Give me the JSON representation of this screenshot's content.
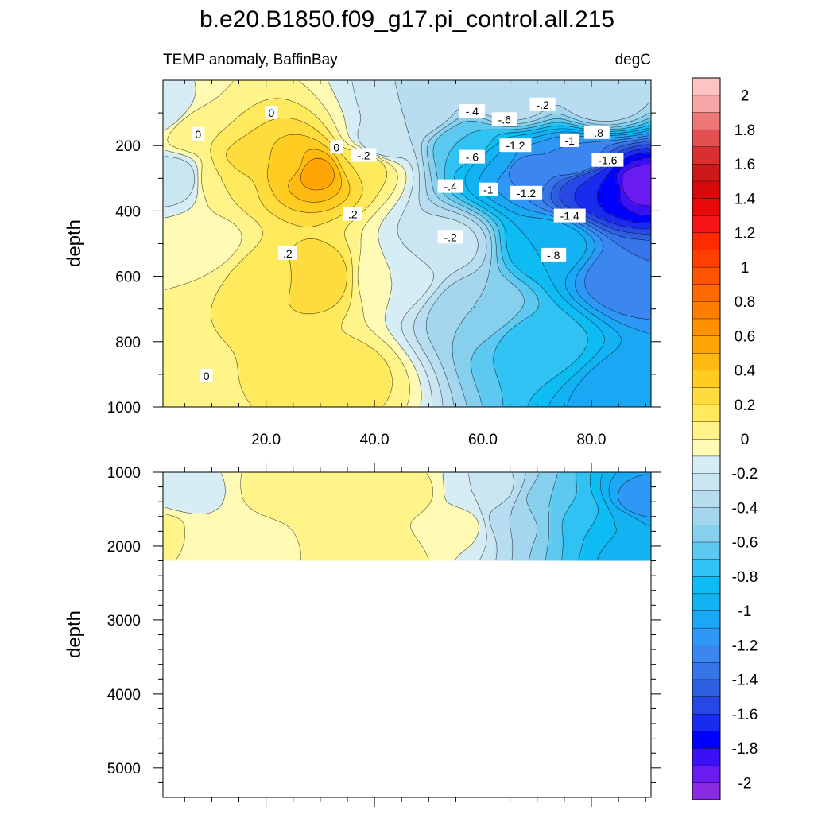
{
  "title": "b.e20.B1850.f09_g17.pi_control.all.215",
  "left_string": "TEMP anomaly, BaffinBay",
  "right_string": "degC",
  "chart_data": [
    {
      "type": "heatmap",
      "panel": "upper",
      "xlabel": "",
      "ylabel": "depth",
      "xlim": [
        1,
        91
      ],
      "ylim": [
        1000,
        0
      ],
      "x_ticks": [
        20,
        40,
        60,
        80
      ],
      "x_tick_labels": [
        "20.0",
        "40.0",
        "60.0",
        "80.0"
      ],
      "y_ticks": [
        200,
        400,
        600,
        800,
        1000
      ],
      "y_tick_labels": [
        "200",
        "400",
        "600",
        "800",
        "1000"
      ],
      "contour_labels": [
        {
          "text": "0",
          "x": 7.5,
          "y": 165
        },
        {
          "text": "0",
          "x": 21,
          "y": 100
        },
        {
          "text": "0",
          "x": 33,
          "y": 205
        },
        {
          "text": "-.2",
          "x": 38,
          "y": 230
        },
        {
          "text": ".2",
          "x": 36,
          "y": 410
        },
        {
          "text": ".2",
          "x": 24,
          "y": 530
        },
        {
          "text": "0",
          "x": 9,
          "y": 905
        },
        {
          "text": "-.4",
          "x": 58,
          "y": 95
        },
        {
          "text": "-.6",
          "x": 64,
          "y": 120
        },
        {
          "text": "-.2",
          "x": 71,
          "y": 75
        },
        {
          "text": "-1.2",
          "x": 66,
          "y": 200
        },
        {
          "text": "-1",
          "x": 76,
          "y": 185
        },
        {
          "text": "-.8",
          "x": 81,
          "y": 160
        },
        {
          "text": "-.6",
          "x": 58,
          "y": 235
        },
        {
          "text": "-1.6",
          "x": 83,
          "y": 245
        },
        {
          "text": "-.4",
          "x": 54,
          "y": 325
        },
        {
          "text": "-1",
          "x": 61,
          "y": 335
        },
        {
          "text": "-1.2",
          "x": 68,
          "y": 345
        },
        {
          "text": "-1.4",
          "x": 76,
          "y": 415
        },
        {
          "text": "-.2",
          "x": 54,
          "y": 480
        },
        {
          "text": "-.8",
          "x": 73,
          "y": 535
        }
      ],
      "fields": [
        {
          "x": 1,
          "y": 100,
          "value": -0.2
        },
        {
          "x": 3,
          "y": 300,
          "value": -0.3
        },
        {
          "x": 7,
          "y": 150,
          "value": 0.1
        },
        {
          "x": 8,
          "y": 500,
          "value": -0.05
        },
        {
          "x": 12,
          "y": 300,
          "value": 0.1
        },
        {
          "x": 17,
          "y": 250,
          "value": 0.25
        },
        {
          "x": 21,
          "y": 600,
          "value": 0.15
        },
        {
          "x": 24,
          "y": 260,
          "value": 0.35
        },
        {
          "x": 29,
          "y": 280,
          "value": 0.55
        },
        {
          "x": 29,
          "y": 600,
          "value": 0.3
        },
        {
          "x": 33,
          "y": 900,
          "value": 0.15
        },
        {
          "x": 38,
          "y": 250,
          "value": 0.2
        },
        {
          "x": 41,
          "y": 200,
          "value": -0.3
        },
        {
          "x": 43,
          "y": 600,
          "value": -0.1
        },
        {
          "x": 48,
          "y": 100,
          "value": -0.3
        },
        {
          "x": 53,
          "y": 500,
          "value": -0.25
        },
        {
          "x": 57,
          "y": 200,
          "value": -0.7
        },
        {
          "x": 59,
          "y": 700,
          "value": -0.5
        },
        {
          "x": 63,
          "y": 250,
          "value": -1.0
        },
        {
          "x": 67,
          "y": 270,
          "value": -1.25
        },
        {
          "x": 70,
          "y": 800,
          "value": -0.75
        },
        {
          "x": 72,
          "y": 500,
          "value": -0.9
        },
        {
          "x": 77,
          "y": 250,
          "value": -1.2
        },
        {
          "x": 80,
          "y": 320,
          "value": -1.6
        },
        {
          "x": 83,
          "y": 330,
          "value": -1.75
        },
        {
          "x": 88,
          "y": 320,
          "value": -2.0
        },
        {
          "x": 87,
          "y": 600,
          "value": -1.3
        },
        {
          "x": 88,
          "y": 950,
          "value": -1.1
        },
        {
          "x": 65,
          "y": 60,
          "value": -0.3
        },
        {
          "x": 82,
          "y": 60,
          "value": -0.3
        }
      ]
    },
    {
      "type": "heatmap",
      "panel": "lower",
      "xlabel": "",
      "ylabel": "depth",
      "xlim": [
        1,
        91
      ],
      "ylim": [
        5400,
        1000
      ],
      "data_depth_max": 2200,
      "y_ticks": [
        1000,
        2000,
        3000,
        4000,
        5000
      ],
      "y_tick_labels": [
        "1000",
        "2000",
        "3000",
        "4000",
        "5000"
      ],
      "fields": [
        {
          "x": 1,
          "y": 1800,
          "value": 0.05
        },
        {
          "x": 5,
          "y": 1300,
          "value": -0.15
        },
        {
          "x": 10,
          "y": 1800,
          "value": -0.1
        },
        {
          "x": 18,
          "y": 1900,
          "value": -0.05
        },
        {
          "x": 24,
          "y": 1300,
          "value": 0.1
        },
        {
          "x": 33,
          "y": 1700,
          "value": 0.05
        },
        {
          "x": 40,
          "y": 2100,
          "value": 0.1
        },
        {
          "x": 45,
          "y": 1300,
          "value": 0.05
        },
        {
          "x": 55,
          "y": 1700,
          "value": -0.05
        },
        {
          "x": 60,
          "y": 1300,
          "value": -0.2
        },
        {
          "x": 66,
          "y": 1600,
          "value": -0.4
        },
        {
          "x": 72,
          "y": 1500,
          "value": -0.6
        },
        {
          "x": 78,
          "y": 1600,
          "value": -0.75
        },
        {
          "x": 84,
          "y": 1700,
          "value": -0.9
        },
        {
          "x": 89,
          "y": 1400,
          "value": -1.15
        },
        {
          "x": 90,
          "y": 2100,
          "value": -1.0
        }
      ]
    }
  ],
  "colorbar": {
    "levels": [
      -2.0,
      -1.9,
      -1.8,
      -1.7,
      -1.6,
      -1.5,
      -1.4,
      -1.3,
      -1.2,
      -1.1,
      -1.0,
      -0.9,
      -0.8,
      -0.7,
      -0.6,
      -0.5,
      -0.4,
      -0.3,
      -0.2,
      -0.1,
      0.0,
      0.1,
      0.2,
      0.3,
      0.4,
      0.5,
      0.6,
      0.7,
      0.8,
      0.9,
      1.0,
      1.1,
      1.2,
      1.3,
      1.4,
      1.5,
      1.6,
      1.7,
      1.8,
      1.9,
      2.0
    ],
    "colors": [
      "#8A2BE2",
      "#6A1BF0",
      "#3A10F5",
      "#0000FF",
      "#1A2BF0",
      "#2848E6",
      "#2E5FE0",
      "#3674E8",
      "#3C86F0",
      "#2F97F6",
      "#1AA8F5",
      "#12B2F3",
      "#0CBCF2",
      "#30C2F3",
      "#5EC9F0",
      "#86D0EE",
      "#A4D6EE",
      "#B9DDF0",
      "#C9E6F2",
      "#D6EDF6",
      "#FFFBB5",
      "#FFF48A",
      "#FFEA5E",
      "#FFDC3E",
      "#FFCC22",
      "#FFBA12",
      "#FFA508",
      "#FF9100",
      "#FF7E00",
      "#FF6A00",
      "#FF5500",
      "#FF3F00",
      "#FF2A00",
      "#F51515",
      "#E80A0A",
      "#D60A0A",
      "#CC1A1A",
      "#D83030",
      "#E25050",
      "#EE7878",
      "#F5A5A5",
      "#FCC4C4"
    ],
    "tick_values": [
      -2,
      -1.8,
      -1.6,
      -1.4,
      -1.2,
      -1,
      -0.8,
      -0.6,
      -0.4,
      -0.2,
      0,
      0.2,
      0.4,
      0.6,
      0.8,
      1,
      1.2,
      1.4,
      1.6,
      1.8,
      2
    ],
    "tick_labels": [
      "-2",
      "-1.8",
      "-1.6",
      "-1.4",
      "-1.2",
      "-1",
      "-0.8",
      "-0.6",
      "-0.4",
      "-0.2",
      "0",
      "0.2",
      "0.4",
      "0.6",
      "0.8",
      "1",
      "1.2",
      "1.4",
      "1.6",
      "1.8",
      "2"
    ]
  }
}
